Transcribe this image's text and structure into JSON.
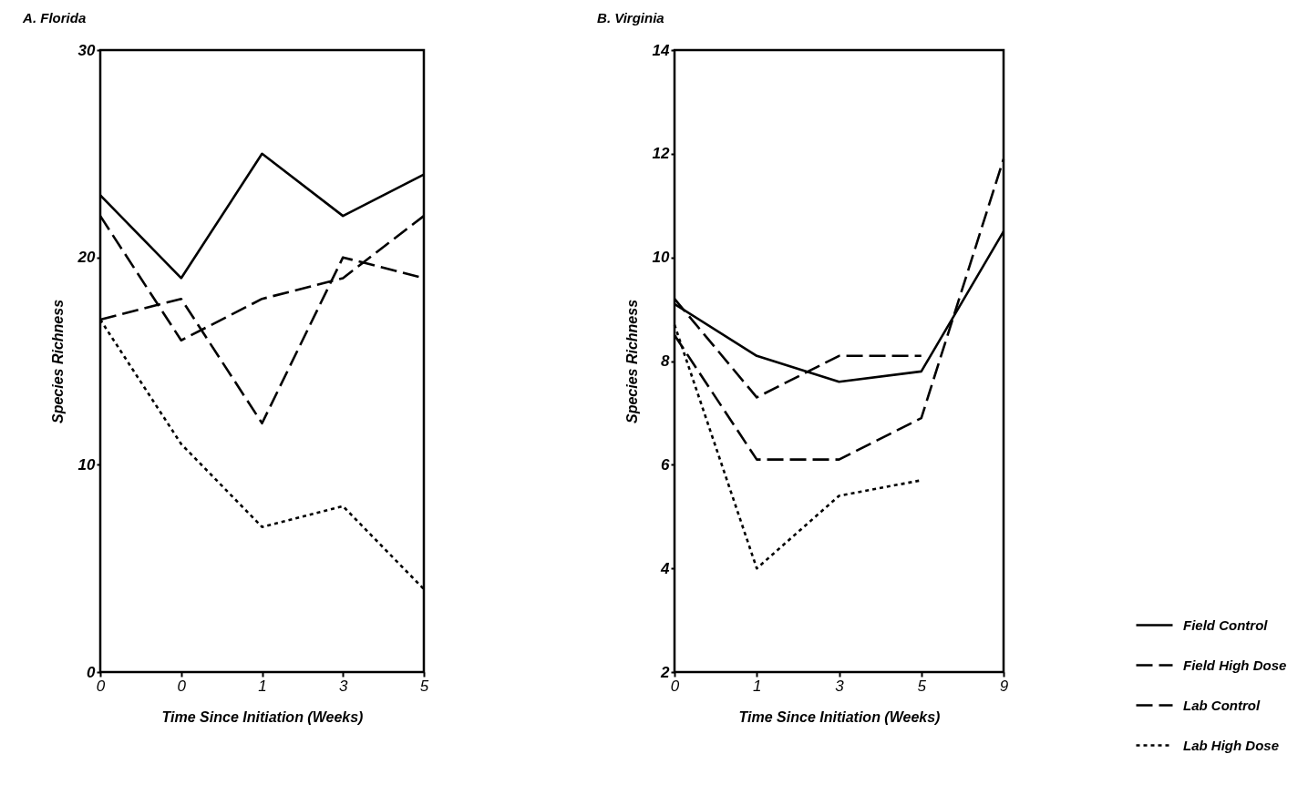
{
  "chart_data": [
    {
      "type": "line",
      "title": "A.  Florida",
      "xlabel": "Time Since Initiation (Weeks)",
      "ylabel": "Species Richness",
      "categories": [
        "0",
        "0",
        "1",
        "3",
        "5"
      ],
      "ylim": [
        0,
        30
      ],
      "yticks": [
        0,
        10,
        20,
        30
      ],
      "grid": false,
      "legend": false,
      "series": [
        {
          "color": "#000000",
          "line_style": "solid",
          "values": [
            23,
            19,
            25,
            22,
            24
          ]
        },
        {
          "color": "#000000",
          "line_style": "dashed",
          "values": [
            22,
            16,
            18,
            19,
            22
          ]
        },
        {
          "color": "#000000",
          "line_style": "dashed",
          "values": [
            17,
            18,
            12,
            20,
            19
          ]
        },
        {
          "color": "#000000",
          "line_style": "dotted",
          "values": [
            17,
            11,
            7,
            8,
            4
          ]
        }
      ]
    },
    {
      "type": "line",
      "title": "B.  Virginia",
      "xlabel": "Time Since Initiation (Weeks)",
      "ylabel": "Species Richness",
      "categories": [
        "0",
        "1",
        "3",
        "5",
        "9"
      ],
      "ylim": [
        2,
        14
      ],
      "yticks": [
        2,
        4,
        6,
        8,
        10,
        12,
        14
      ],
      "grid": false,
      "legend": "bottom right",
      "series": [
        {
          "name": "Field Control",
          "color": "#000000",
          "line_style": "solid",
          "values": [
            9.1,
            8.1,
            7.6,
            7.8,
            10.5
          ]
        },
        {
          "name": "Field High Dose",
          "color": "#000000",
          "line_style": "dashed",
          "values": [
            8.5,
            6.1,
            6.1,
            6.9,
            11.9
          ]
        },
        {
          "name": "Lab Control",
          "color": "#000000",
          "line_style": "dashed",
          "values": [
            9.2,
            7.3,
            8.1,
            8.1,
            null
          ]
        },
        {
          "name": "Lab High Dose",
          "color": "#000000",
          "line_style": "dotted",
          "values": [
            8.7,
            4.0,
            5.4,
            5.7,
            null
          ]
        }
      ]
    }
  ]
}
